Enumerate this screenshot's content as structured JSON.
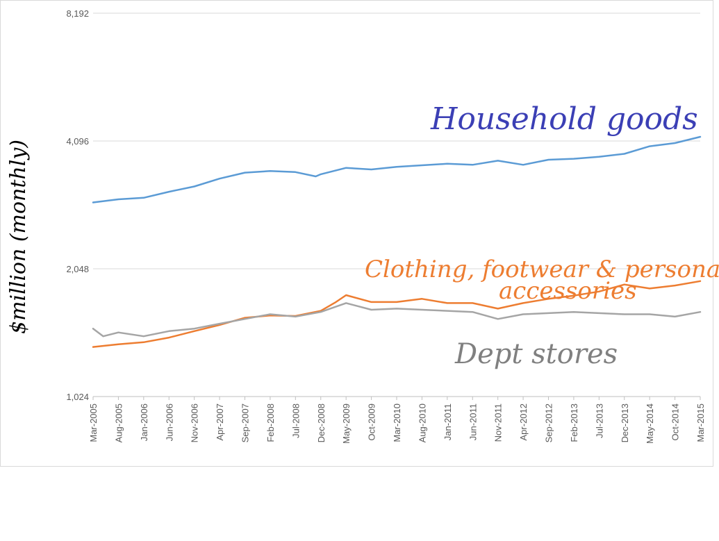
{
  "chart_data": {
    "type": "line",
    "ylabel": "$million (monthly)",
    "y_scale": "log2",
    "ylim": [
      1024,
      8192
    ],
    "y_ticks": [
      {
        "value": 1024,
        "label": "1,024"
      },
      {
        "value": 2048,
        "label": "2,048"
      },
      {
        "value": 4096,
        "label": "4,096"
      },
      {
        "value": 8192,
        "label": "8,192"
      }
    ],
    "grid": "horizontal",
    "x_start": "Mar-2005",
    "x_end": "Mar-2015",
    "x_ticks": [
      "Mar-2005",
      "Aug-2005",
      "Jan-2006",
      "Jun-2006",
      "Nov-2006",
      "Apr-2007",
      "Sep-2007",
      "Feb-2008",
      "Jul-2008",
      "Dec-2008",
      "May-2009",
      "Oct-2009",
      "Mar-2010",
      "Aug-2010",
      "Jan-2011",
      "Jun-2011",
      "Nov-2011",
      "Apr-2012",
      "Sep-2012",
      "Feb-2013",
      "Jul-2013",
      "Dec-2013",
      "May-2014",
      "Oct-2014",
      "Mar-2015"
    ],
    "series": [
      {
        "name": "Household goods",
        "color": "#5b9bd5",
        "label_color": "#3b3fb5",
        "points": [
          [
            "Mar-2005",
            2935
          ],
          [
            "Aug-2005",
            2985
          ],
          [
            "Jan-2006",
            3010
          ],
          [
            "Jun-2006",
            3110
          ],
          [
            "Nov-2006",
            3200
          ],
          [
            "Apr-2007",
            3340
          ],
          [
            "Sep-2007",
            3450
          ],
          [
            "Feb-2008",
            3480
          ],
          [
            "Jul-2008",
            3460
          ],
          [
            "Nov-2008",
            3380
          ],
          [
            "Dec-2008",
            3420
          ],
          [
            "May-2009",
            3540
          ],
          [
            "Oct-2009",
            3510
          ],
          [
            "Mar-2010",
            3560
          ],
          [
            "Aug-2010",
            3590
          ],
          [
            "Jan-2011",
            3620
          ],
          [
            "Jun-2011",
            3600
          ],
          [
            "Nov-2011",
            3680
          ],
          [
            "Apr-2012",
            3600
          ],
          [
            "Sep-2012",
            3700
          ],
          [
            "Feb-2013",
            3720
          ],
          [
            "Jul-2013",
            3760
          ],
          [
            "Dec-2013",
            3820
          ],
          [
            "May-2014",
            3980
          ],
          [
            "Oct-2014",
            4050
          ],
          [
            "Mar-2015",
            4190
          ]
        ]
      },
      {
        "name": "Clothing, footwear & personal accessories",
        "color": "#ed7d31",
        "label_color": "#ed7d31",
        "points": [
          [
            "Mar-2005",
            1340
          ],
          [
            "Aug-2005",
            1360
          ],
          [
            "Jan-2006",
            1375
          ],
          [
            "Jun-2006",
            1410
          ],
          [
            "Nov-2006",
            1460
          ],
          [
            "Apr-2007",
            1510
          ],
          [
            "Sep-2007",
            1570
          ],
          [
            "Feb-2008",
            1590
          ],
          [
            "Jul-2008",
            1585
          ],
          [
            "Dec-2008",
            1630
          ],
          [
            "Mar-2009",
            1710
          ],
          [
            "May-2009",
            1775
          ],
          [
            "Oct-2009",
            1710
          ],
          [
            "Mar-2010",
            1710
          ],
          [
            "Aug-2010",
            1740
          ],
          [
            "Jan-2011",
            1700
          ],
          [
            "Jun-2011",
            1700
          ],
          [
            "Nov-2011",
            1650
          ],
          [
            "Apr-2012",
            1700
          ],
          [
            "Sep-2012",
            1740
          ],
          [
            "Feb-2013",
            1770
          ],
          [
            "Jul-2013",
            1810
          ],
          [
            "Dec-2013",
            1880
          ],
          [
            "May-2014",
            1840
          ],
          [
            "Oct-2014",
            1870
          ],
          [
            "Mar-2015",
            1915
          ]
        ]
      },
      {
        "name": "Dept stores",
        "color": "#a5a5a5",
        "label_color": "#808080",
        "points": [
          [
            "Mar-2005",
            1480
          ],
          [
            "May-2005",
            1420
          ],
          [
            "Aug-2005",
            1450
          ],
          [
            "Jan-2006",
            1420
          ],
          [
            "Jun-2006",
            1460
          ],
          [
            "Nov-2006",
            1480
          ],
          [
            "Apr-2007",
            1520
          ],
          [
            "Sep-2007",
            1560
          ],
          [
            "Feb-2008",
            1600
          ],
          [
            "Jul-2008",
            1580
          ],
          [
            "Dec-2008",
            1620
          ],
          [
            "May-2009",
            1700
          ],
          [
            "Oct-2009",
            1640
          ],
          [
            "Mar-2010",
            1650
          ],
          [
            "Aug-2010",
            1640
          ],
          [
            "Jan-2011",
            1630
          ],
          [
            "Jun-2011",
            1620
          ],
          [
            "Nov-2011",
            1560
          ],
          [
            "Apr-2012",
            1600
          ],
          [
            "Sep-2012",
            1610
          ],
          [
            "Feb-2013",
            1620
          ],
          [
            "Jul-2013",
            1610
          ],
          [
            "Dec-2013",
            1600
          ],
          [
            "May-2014",
            1600
          ],
          [
            "Oct-2014",
            1580
          ],
          [
            "Mar-2015",
            1620
          ]
        ]
      }
    ]
  }
}
